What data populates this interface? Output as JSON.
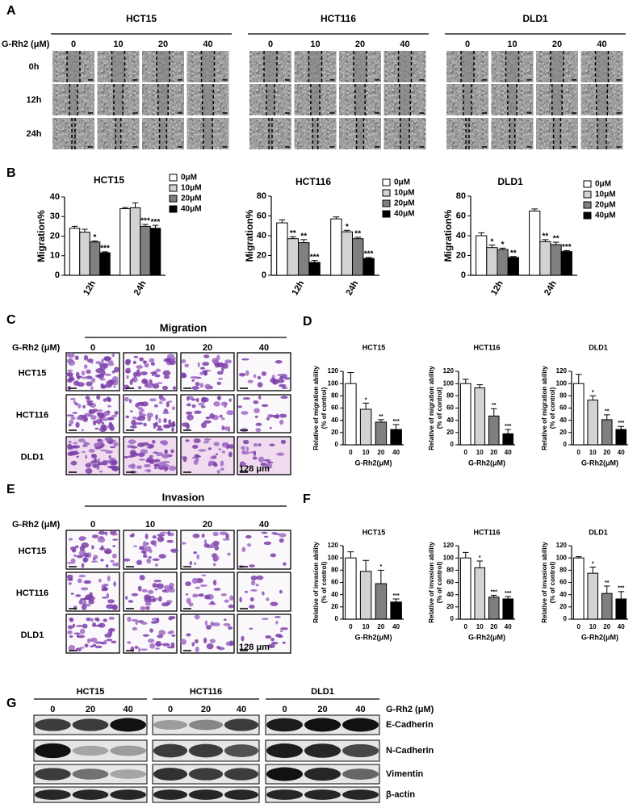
{
  "panel_labels": [
    "A",
    "B",
    "C",
    "D",
    "E",
    "F",
    "G"
  ],
  "wound_healing": {
    "cell_lines": [
      "HCT15",
      "HCT116",
      "DLD1"
    ],
    "dose_label": "G-Rh2 (μM)",
    "doses": [
      "0",
      "10",
      "20",
      "40"
    ],
    "times": [
      "0h",
      "12h",
      "24h"
    ]
  },
  "chart_data": [
    {
      "type": "bar",
      "title": "HCT15",
      "y_label": "Migration%",
      "categories": [
        "12h",
        "24h"
      ],
      "legend": "right",
      "series": [
        {
          "name": "0μM",
          "color": "#ffffff",
          "values": [
            24,
            34
          ],
          "errors": [
            1,
            0.6
          ],
          "sig": [
            null,
            null
          ]
        },
        {
          "name": "10μM",
          "color": "#d3d3d3",
          "values": [
            22,
            34.5
          ],
          "errors": [
            1.5,
            2.5
          ],
          "sig": [
            null,
            null
          ]
        },
        {
          "name": "20μM",
          "color": "#808080",
          "values": [
            17,
            25
          ],
          "errors": [
            0.5,
            1
          ],
          "sig": [
            "*",
            "***"
          ]
        },
        {
          "name": "40μM",
          "color": "#000000",
          "values": [
            11.5,
            24
          ],
          "errors": [
            0.5,
            1.5
          ],
          "sig": [
            "***",
            "***"
          ]
        }
      ],
      "ylim": [
        0,
        40
      ],
      "yticks": [
        0,
        10,
        20,
        30,
        40
      ]
    },
    {
      "type": "bar",
      "title": "HCT116",
      "y_label": "Migration%",
      "categories": [
        "12h",
        "24h"
      ],
      "legend": "right",
      "series": [
        {
          "name": "0μM",
          "color": "#ffffff",
          "values": [
            53,
            57
          ],
          "errors": [
            3,
            2
          ],
          "sig": [
            null,
            null
          ]
        },
        {
          "name": "10μM",
          "color": "#d3d3d3",
          "values": [
            37,
            44
          ],
          "errors": [
            2,
            1.5
          ],
          "sig": [
            "**",
            "*"
          ]
        },
        {
          "name": "20μM",
          "color": "#808080",
          "values": [
            33,
            37
          ],
          "errors": [
            3,
            1.5
          ],
          "sig": [
            "**",
            "**"
          ]
        },
        {
          "name": "40μM",
          "color": "#000000",
          "values": [
            13,
            17
          ],
          "errors": [
            2,
            1
          ],
          "sig": [
            "***",
            "***"
          ]
        }
      ],
      "ylim": [
        0,
        80
      ],
      "yticks": [
        0,
        20,
        40,
        60,
        80
      ]
    },
    {
      "type": "bar",
      "title": "DLD1",
      "y_label": "Migration%",
      "categories": [
        "12h",
        "24h"
      ],
      "legend": "right",
      "series": [
        {
          "name": "0μM",
          "color": "#ffffff",
          "values": [
            40,
            65
          ],
          "errors": [
            3,
            2
          ],
          "sig": [
            null,
            null
          ]
        },
        {
          "name": "10μM",
          "color": "#d3d3d3",
          "values": [
            28,
            34
          ],
          "errors": [
            2.5,
            2
          ],
          "sig": [
            "*",
            "**"
          ]
        },
        {
          "name": "20μM",
          "color": "#808080",
          "values": [
            26,
            31
          ],
          "errors": [
            1.5,
            2.5
          ],
          "sig": [
            "*",
            "**"
          ]
        },
        {
          "name": "40μM",
          "color": "#000000",
          "values": [
            18,
            24
          ],
          "errors": [
            1,
            1
          ],
          "sig": [
            "**",
            "***"
          ]
        }
      ],
      "ylim": [
        0,
        80
      ],
      "yticks": [
        0,
        20,
        40,
        60,
        80
      ]
    },
    {
      "type": "bar",
      "title": "HCT15",
      "y_label": [
        "Relative of migration ability",
        "(% of control)"
      ],
      "x_label": "G-Rh2(μM)",
      "categories": [
        "0",
        "10",
        "20",
        "40"
      ],
      "values": [
        100,
        58,
        37,
        25
      ],
      "errors": [
        18,
        10,
        4,
        8
      ],
      "sig": [
        null,
        "*",
        "**",
        "***"
      ],
      "colors": [
        "#ffffff",
        "#d3d3d3",
        "#7f7f7f",
        "#000000"
      ],
      "ylim": [
        0,
        120
      ],
      "yticks": [
        0,
        20,
        40,
        60,
        80,
        100,
        120
      ]
    },
    {
      "type": "bar",
      "title": "HCT116",
      "y_label": [
        "Relative of migration ability",
        "(% of control)"
      ],
      "x_label": "G-Rh2(μM)",
      "categories": [
        "0",
        "10",
        "20",
        "40"
      ],
      "values": [
        100,
        93,
        47,
        18
      ],
      "errors": [
        7,
        5,
        12,
        7
      ],
      "sig": [
        null,
        null,
        "**",
        "***"
      ],
      "colors": [
        "#ffffff",
        "#d3d3d3",
        "#7f7f7f",
        "#000000"
      ],
      "ylim": [
        0,
        120
      ],
      "yticks": [
        0,
        20,
        40,
        60,
        80,
        100,
        120
      ]
    },
    {
      "type": "bar",
      "title": "DLD1",
      "y_label": [
        "Relative of migration ability",
        "(% of control)"
      ],
      "x_label": "G-Rh2(μM)",
      "categories": [
        "0",
        "10",
        "20",
        "40"
      ],
      "values": [
        100,
        73,
        41,
        25
      ],
      "errors": [
        15,
        7,
        8,
        5
      ],
      "sig": [
        null,
        "*",
        "**",
        "***"
      ],
      "colors": [
        "#ffffff",
        "#d3d3d3",
        "#7f7f7f",
        "#000000"
      ],
      "ylim": [
        0,
        120
      ],
      "yticks": [
        0,
        20,
        40,
        60,
        80,
        100,
        120
      ]
    },
    {
      "type": "bar",
      "title": "HCT15",
      "y_label": [
        "Relative of invasion ability",
        "(% of control)"
      ],
      "x_label": "G-Rh2(μM)",
      "categories": [
        "0",
        "10",
        "20",
        "40"
      ],
      "values": [
        100,
        78,
        58,
        28
      ],
      "errors": [
        10,
        18,
        22,
        5
      ],
      "sig": [
        null,
        null,
        "*",
        "***"
      ],
      "colors": [
        "#ffffff",
        "#d3d3d3",
        "#7f7f7f",
        "#000000"
      ],
      "ylim": [
        0,
        120
      ],
      "yticks": [
        0,
        20,
        40,
        60,
        80,
        100,
        120
      ]
    },
    {
      "type": "bar",
      "title": "HCT116",
      "y_label": [
        "Relative of invasion ability",
        "(% of control)"
      ],
      "x_label": "G-Rh2(μM)",
      "categories": [
        "0",
        "10",
        "20",
        "40"
      ],
      "values": [
        100,
        84,
        36,
        33
      ],
      "errors": [
        9,
        11,
        3,
        4
      ],
      "sig": [
        null,
        "*",
        "***",
        "***"
      ],
      "colors": [
        "#ffffff",
        "#d3d3d3",
        "#7f7f7f",
        "#000000"
      ],
      "ylim": [
        0,
        120
      ],
      "yticks": [
        0,
        20,
        40,
        60,
        80,
        100,
        120
      ]
    },
    {
      "type": "bar",
      "title": "DLD1",
      "y_label": [
        "Relative of invasion ability",
        "(% of control)"
      ],
      "x_label": "G-Rh2(μM)",
      "categories": [
        "0",
        "10",
        "20",
        "40"
      ],
      "values": [
        100,
        75,
        42,
        33
      ],
      "errors": [
        2,
        10,
        12,
        12
      ],
      "sig": [
        null,
        "*",
        "**",
        "***"
      ],
      "colors": [
        "#ffffff",
        "#d3d3d3",
        "#7f7f7f",
        "#000000"
      ],
      "ylim": [
        0,
        120
      ],
      "yticks": [
        0,
        20,
        40,
        60,
        80,
        100,
        120
      ]
    }
  ],
  "migration_images": {
    "title": "Migration",
    "dose_label": "G-Rh2 (μM)",
    "doses": [
      "0",
      "10",
      "20",
      "40"
    ],
    "cell_lines": [
      "HCT15",
      "HCT116",
      "DLD1"
    ],
    "scale_bar": "128 μm"
  },
  "invasion_images": {
    "title": "Invasion",
    "dose_label": "G-Rh2 (μM)",
    "doses": [
      "0",
      "10",
      "20",
      "40"
    ],
    "cell_lines": [
      "HCT15",
      "HCT116",
      "DLD1"
    ],
    "scale_bar": "128 μm"
  },
  "western_blot": {
    "cell_lines": [
      "HCT15",
      "HCT116",
      "DLD1"
    ],
    "dose_label": "G-Rh2 (μM)",
    "doses": [
      "0",
      "20",
      "40"
    ],
    "proteins": [
      "E-Cadherin",
      "N-Cadherin",
      "Vimentin",
      "β-actin"
    ]
  }
}
